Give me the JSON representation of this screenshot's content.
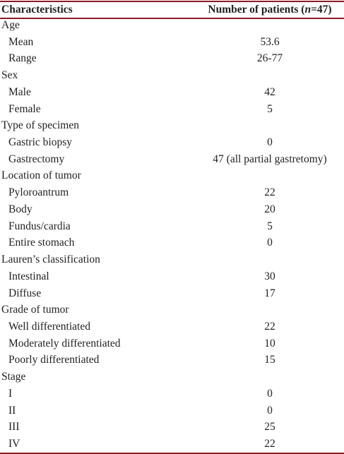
{
  "table": {
    "columns": [
      "Characteristics",
      [
        "Number of patients (",
        "n",
        "=47)"
      ]
    ],
    "sections": [
      {
        "title": "Age",
        "items": [
          [
            "Mean",
            53.6
          ],
          [
            "Range",
            "26-77"
          ]
        ]
      },
      {
        "title": "Sex",
        "items": [
          [
            "Male",
            42
          ],
          [
            "Female",
            5
          ]
        ]
      },
      {
        "title": "Type of specimen",
        "items": [
          [
            "Gastric biopsy",
            0
          ],
          [
            "Gastrectomy",
            "47 (all partial gastretomy)"
          ]
        ]
      },
      {
        "title": "Location of tumor",
        "items": [
          [
            "Pyloroantrum",
            22
          ],
          [
            "Body",
            20
          ],
          [
            "Fundus/cardia",
            5
          ],
          [
            "Entire stomach",
            0
          ]
        ]
      },
      {
        "title": "Lauren’s classification",
        "items": [
          [
            "Intestinal",
            30
          ],
          [
            "Diffuse",
            17
          ]
        ]
      },
      {
        "title": "Grade of tumor",
        "items": [
          [
            "Well differentiated",
            22
          ],
          [
            "Moderately differentiated",
            10
          ],
          [
            "Poorly differentiated",
            15
          ]
        ]
      },
      {
        "title": "Stage",
        "items": [
          [
            "I",
            0
          ],
          [
            "II",
            0
          ],
          [
            "III",
            25
          ],
          [
            "IV",
            22
          ]
        ]
      }
    ]
  }
}
